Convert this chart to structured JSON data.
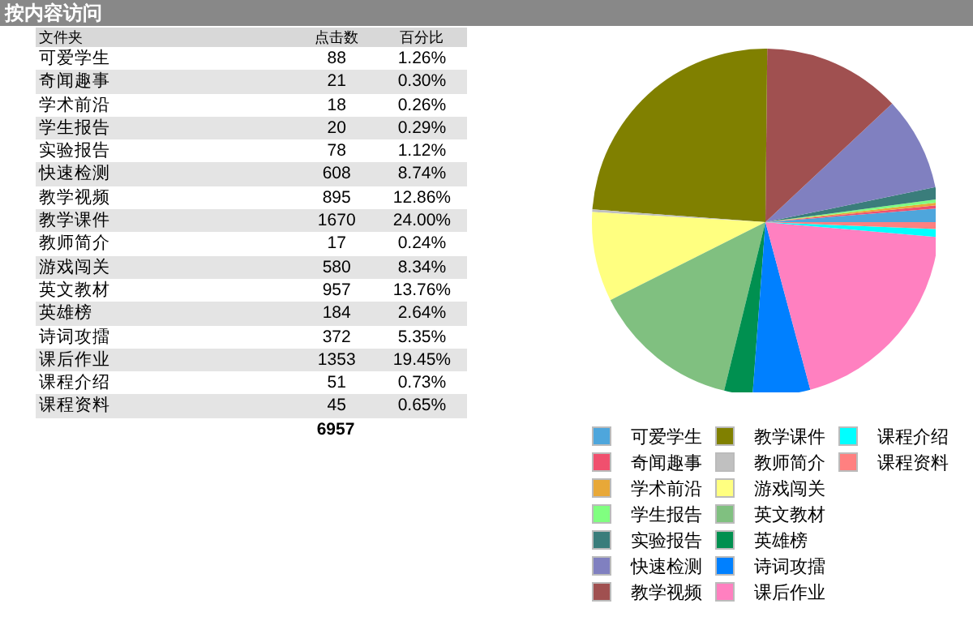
{
  "chart_data": [
    {
      "type": "other",
      "title": "按内容访问",
      "categories": [
        "可爱学生",
        "奇闻趣事",
        "学术前沿",
        "学生报告",
        "实验报告",
        "快速检测",
        "教学视频",
        "教学课件",
        "教师简介",
        "游戏闯关",
        "英文教材",
        "英雄榜",
        "诗词攻擂",
        "课后作业",
        "课程介绍",
        "课程资料"
      ],
      "series": [
        {
          "name": "点击数",
          "colors": [
            "#ffffff",
            "#e4e4e4",
            "#ffffff",
            "#e4e4e4",
            "#ffffff",
            "#e4e4e4",
            "#ffffff",
            "#e4e4e4",
            "#ffffff",
            "#e4e4e4",
            "#ffffff",
            "#e4e4e4",
            "#ffffff",
            "#e4e4e4",
            "#ffffff",
            "#e4e4e4"
          ],
          "values": [
            88,
            21,
            18,
            20,
            78,
            608,
            895,
            1670,
            17,
            580,
            957,
            184,
            372,
            1353,
            51,
            45
          ]
        },
        {
          "name": "百分比",
          "values": [
            1.26,
            0.3,
            0.26,
            0.29,
            1.12,
            8.74,
            12.86,
            24.0,
            0.24,
            8.34,
            13.76,
            2.64,
            5.35,
            19.45,
            0.73,
            0.65
          ],
          "value_labels": [
            "1.26%",
            "0.30%",
            "0.26%",
            "0.29%",
            "1.12%",
            "8.74%",
            "12.86%",
            "24.00%",
            "0.24%",
            "8.34%",
            "13.76%",
            "2.64%",
            "5.35%",
            "19.45%",
            "0.73%",
            "0.65%"
          ]
        }
      ],
      "data_labels": true,
      "annotations": [
        "文件夹",
        "6957"
      ]
    },
    {
      "type": "pie",
      "categories": [
        "可爱学生",
        "奇闻趣事",
        "学术前沿",
        "学生报告",
        "实验报告",
        "快速检测",
        "教学视频",
        "教学课件",
        "教师简介",
        "游戏闯关",
        "英文教材",
        "英雄榜",
        "诗词攻擂",
        "课后作业",
        "课程介绍",
        "课程资料"
      ],
      "values": [
        1.26,
        0.3,
        0.26,
        0.29,
        1.12,
        8.74,
        12.86,
        24.0,
        0.24,
        8.34,
        13.76,
        2.64,
        5.35,
        19.45,
        0.73,
        0.65
      ],
      "colors": [
        "#4ea6dc",
        "#f0506e",
        "#e8a838",
        "#80ff80",
        "#3a7d7b",
        "#8080c0",
        "#a05050",
        "#808000",
        "#c0c0c0",
        "#ffff80",
        "#80c080",
        "#009050",
        "#0080ff",
        "#ff80c0",
        "#00ffff",
        "#ff8080"
      ],
      "legend": "bottom"
    }
  ]
}
